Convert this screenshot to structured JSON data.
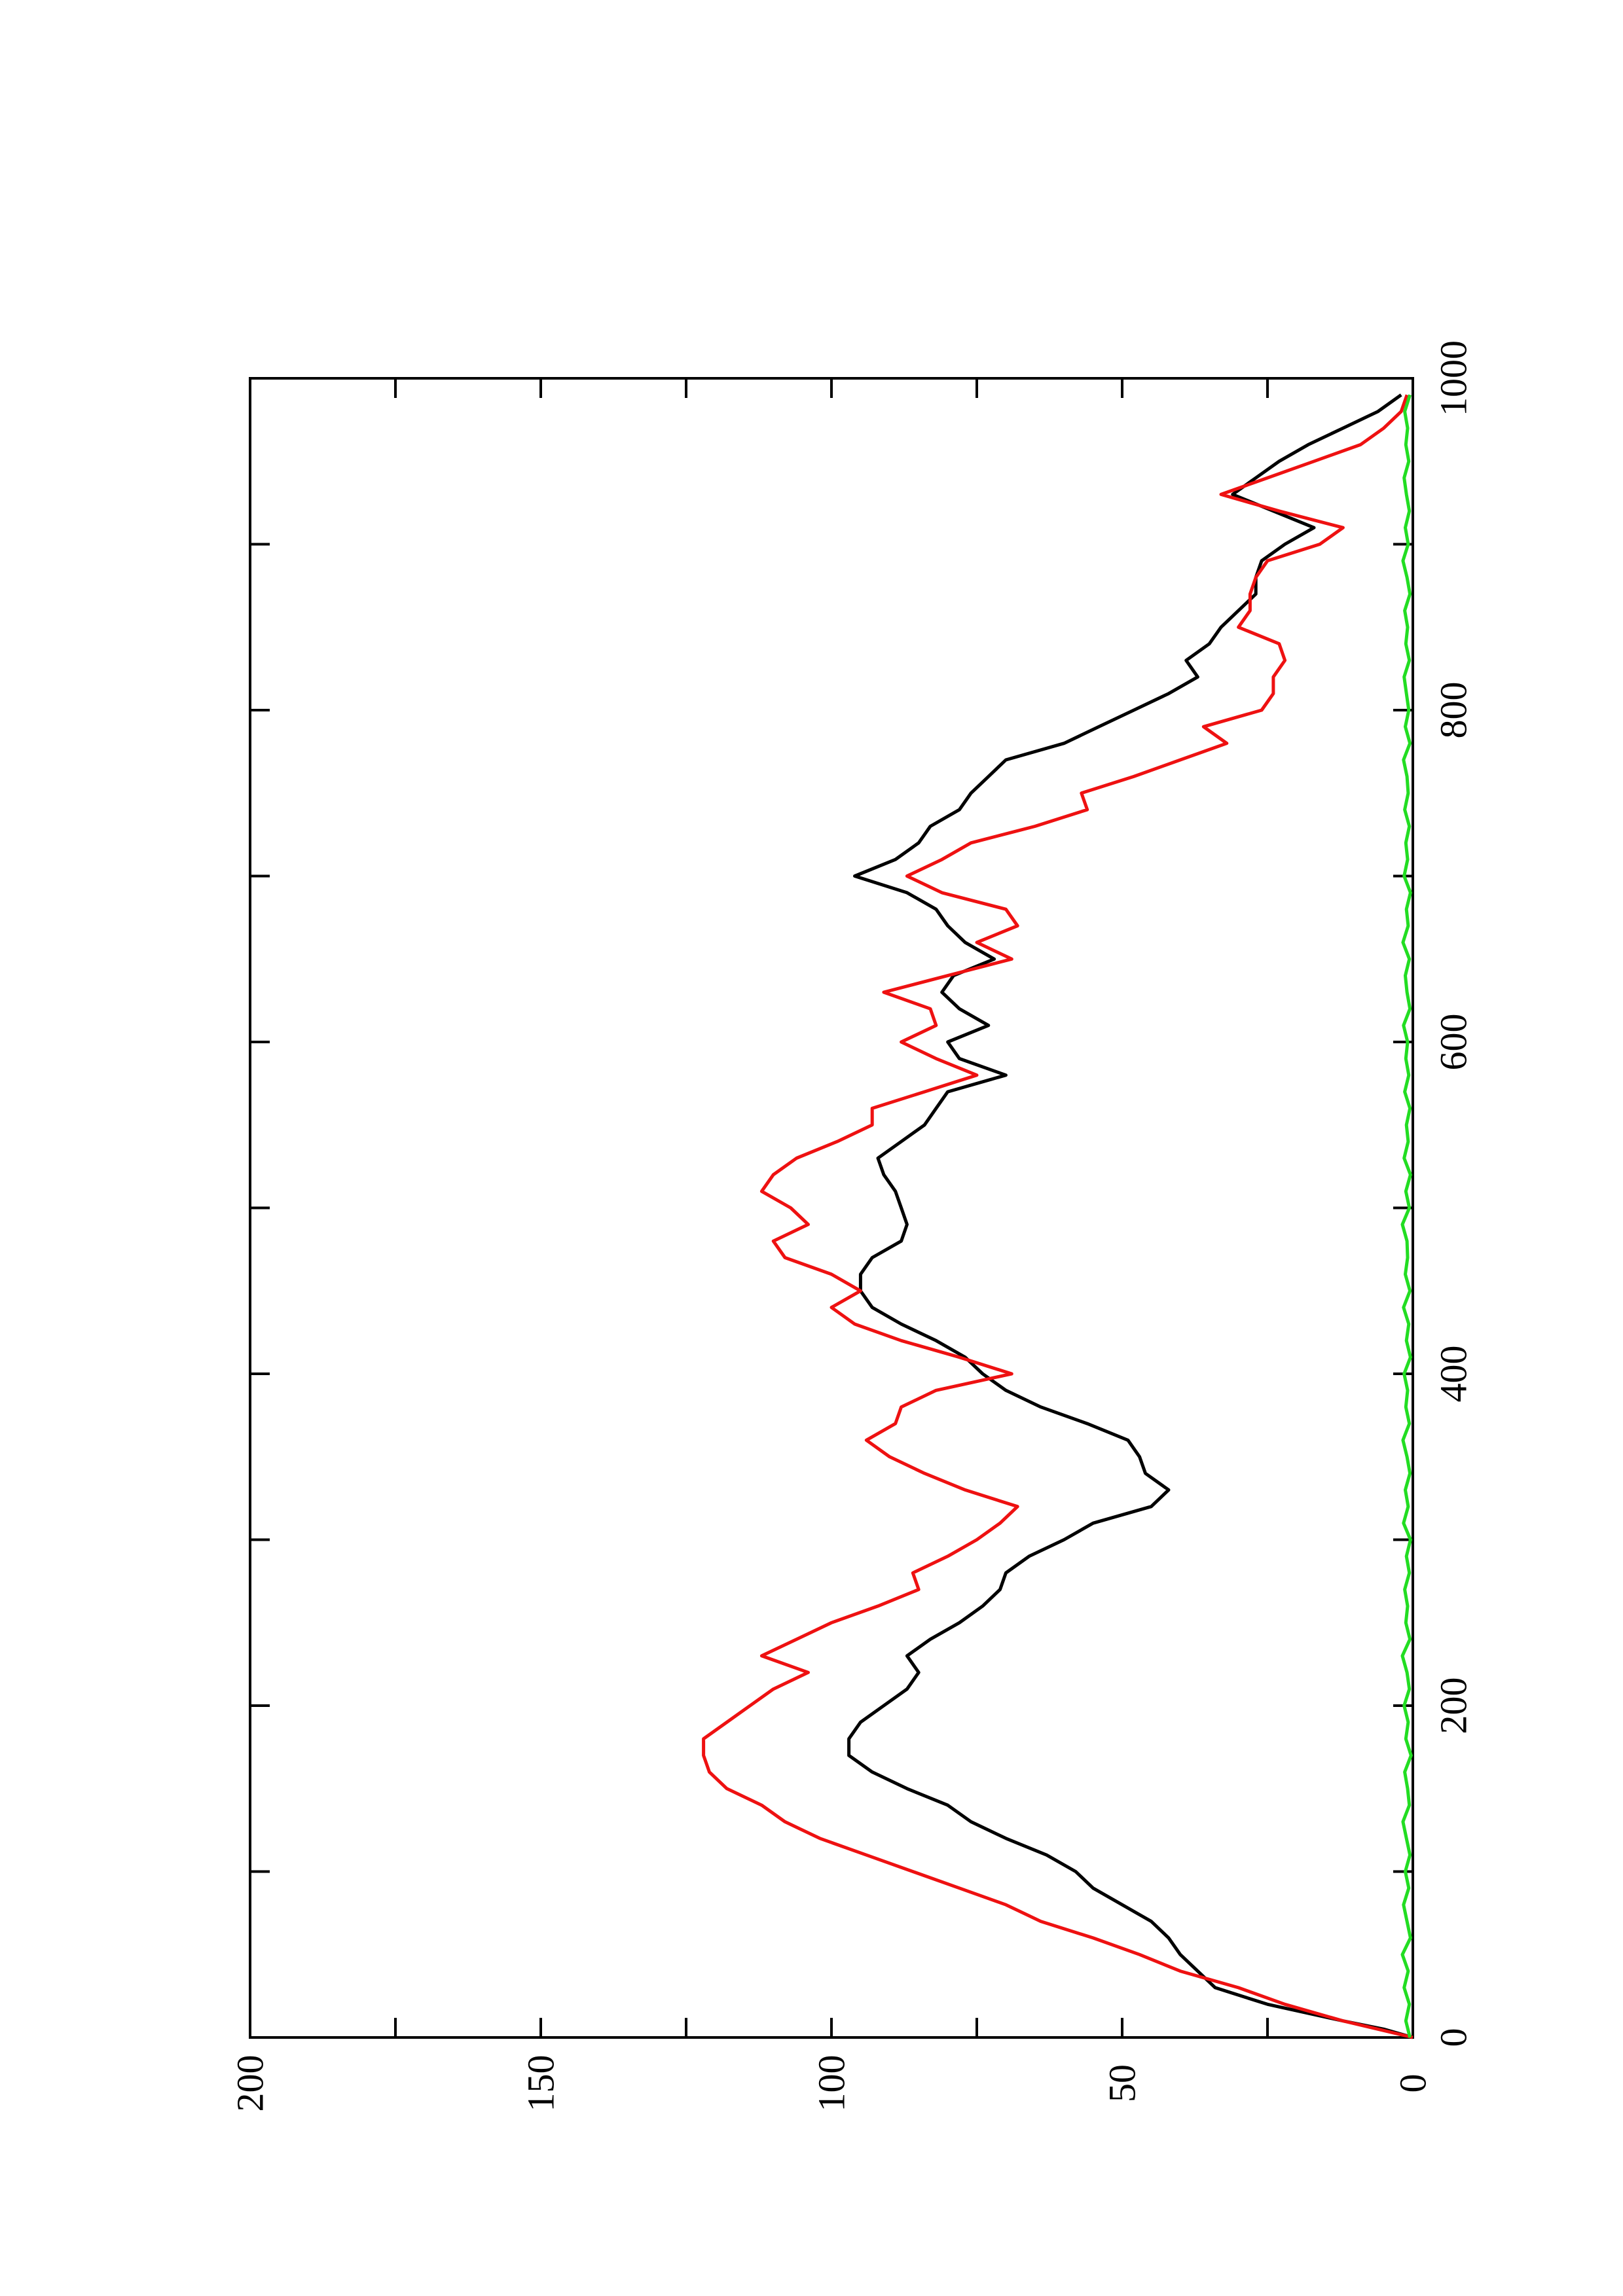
{
  "chart_data": {
    "type": "line",
    "title": "",
    "xlabel": "",
    "ylabel": "",
    "xlim": [
      0,
      1000
    ],
    "ylim": [
      0,
      200
    ],
    "x_ticks": [
      0,
      200,
      400,
      600,
      800,
      1000
    ],
    "x_tick_labels": [
      "0",
      "200",
      "400",
      "600",
      "800",
      "1000"
    ],
    "x_minor_ticks": [
      100,
      300,
      500,
      700,
      900
    ],
    "y_ticks": [
      0,
      50,
      100,
      150,
      200
    ],
    "y_tick_labels": [
      "0",
      "50",
      "100",
      "150",
      "200"
    ],
    "y_minor_ticks": [
      25,
      75,
      125,
      175
    ],
    "orientation": "rotated 90 degrees counter-clockwise",
    "grid": false,
    "legend": "none",
    "series": [
      {
        "color": "#000000",
        "x": [
          0,
          5,
          10,
          20,
          30,
          40,
          50,
          60,
          70,
          80,
          90,
          100,
          110,
          120,
          130,
          140,
          150,
          160,
          170,
          180,
          190,
          200,
          210,
          220,
          230,
          240,
          250,
          260,
          270,
          280,
          290,
          300,
          310,
          320,
          330,
          340,
          350,
          360,
          370,
          380,
          390,
          400,
          410,
          420,
          430,
          440,
          450,
          460,
          470,
          480,
          490,
          500,
          510,
          520,
          530,
          540,
          550,
          560,
          570,
          580,
          590,
          600,
          610,
          620,
          630,
          640,
          650,
          660,
          670,
          680,
          690,
          700,
          710,
          720,
          730,
          740,
          750,
          760,
          770,
          780,
          790,
          800,
          810,
          820,
          830,
          840,
          850,
          860,
          870,
          880,
          890,
          900,
          910,
          920,
          930,
          940,
          950,
          960,
          970,
          980,
          990
        ],
        "y": [
          0,
          5,
          12,
          25,
          34,
          37,
          40,
          42,
          45,
          50,
          55,
          58,
          63,
          70,
          76,
          80,
          87,
          93,
          97,
          97,
          95,
          91,
          87,
          85,
          87,
          83,
          78,
          74,
          71,
          70,
          66,
          60,
          55,
          45,
          42,
          46,
          47,
          49,
          56,
          64,
          70,
          74,
          77,
          82,
          88,
          93,
          95,
          95,
          93,
          88,
          87,
          88,
          89,
          91,
          92,
          88,
          84,
          82,
          80,
          70,
          78,
          80,
          73,
          78,
          81,
          79,
          72,
          77,
          80,
          82,
          87,
          96,
          89,
          85,
          83,
          78,
          76,
          73,
          70,
          60,
          54,
          48,
          42,
          37,
          39,
          35,
          33,
          30,
          27,
          27,
          26,
          22,
          17,
          24,
          31,
          27,
          23,
          18,
          12,
          6,
          2
        ]
      },
      {
        "color": "#ee1111",
        "x": [
          0,
          5,
          10,
          20,
          30,
          40,
          50,
          60,
          70,
          80,
          90,
          100,
          110,
          120,
          130,
          140,
          150,
          160,
          170,
          180,
          190,
          200,
          210,
          220,
          230,
          240,
          250,
          260,
          270,
          280,
          290,
          300,
          310,
          320,
          330,
          340,
          350,
          360,
          370,
          380,
          390,
          400,
          410,
          420,
          430,
          440,
          450,
          460,
          470,
          480,
          490,
          500,
          510,
          520,
          530,
          540,
          550,
          560,
          570,
          580,
          590,
          600,
          610,
          620,
          630,
          640,
          650,
          660,
          670,
          680,
          690,
          700,
          710,
          720,
          730,
          740,
          750,
          760,
          770,
          780,
          790,
          800,
          810,
          820,
          830,
          840,
          850,
          860,
          870,
          880,
          890,
          900,
          910,
          920,
          930,
          940,
          950,
          960,
          970,
          980,
          990
        ],
        "y": [
          0,
          6,
          12,
          22,
          30,
          40,
          47,
          55,
          64,
          70,
          78,
          86,
          94,
          102,
          108,
          112,
          118,
          121,
          122,
          122,
          118,
          114,
          110,
          104,
          112,
          106,
          100,
          92,
          85,
          86,
          80,
          75,
          71,
          68,
          77,
          84,
          90,
          94,
          89,
          88,
          82,
          69,
          78,
          88,
          96,
          100,
          95,
          100,
          108,
          110,
          104,
          107,
          112,
          110,
          106,
          99,
          93,
          93,
          84,
          75,
          82,
          88,
          82,
          83,
          91,
          80,
          69,
          75,
          68,
          70,
          81,
          87,
          81,
          76,
          65,
          56,
          57,
          48,
          40,
          32,
          36,
          26,
          24,
          24,
          22,
          23,
          30,
          28,
          28,
          27,
          25,
          16,
          12,
          23,
          33,
          25,
          17,
          9,
          5,
          2,
          1
        ]
      },
      {
        "color": "#22dd22",
        "x": [
          0,
          10,
          20,
          30,
          40,
          50,
          60,
          70,
          80,
          90,
          100,
          110,
          120,
          130,
          140,
          150,
          160,
          170,
          180,
          190,
          200,
          210,
          220,
          230,
          240,
          250,
          260,
          270,
          280,
          290,
          300,
          310,
          320,
          330,
          340,
          350,
          360,
          370,
          380,
          390,
          400,
          410,
          420,
          430,
          440,
          450,
          460,
          470,
          480,
          490,
          500,
          510,
          520,
          530,
          540,
          550,
          560,
          570,
          580,
          590,
          600,
          610,
          620,
          630,
          640,
          650,
          660,
          670,
          680,
          690,
          700,
          710,
          720,
          730,
          740,
          750,
          760,
          770,
          780,
          790,
          800,
          810,
          820,
          830,
          840,
          850,
          860,
          870,
          880,
          890,
          900,
          910,
          920,
          930,
          940,
          950,
          960,
          970,
          980,
          990
        ],
        "y": [
          0.5,
          1.2,
          0.6,
          1.5,
          0.8,
          1.8,
          0.4,
          1.0,
          1.6,
          0.7,
          1.3,
          0.5,
          1.1,
          1.7,
          0.6,
          0.9,
          1.4,
          0.3,
          1.2,
          0.8,
          1.5,
          0.6,
          1.0,
          1.8,
          0.5,
          1.2,
          0.9,
          1.4,
          0.6,
          1.1,
          0.4,
          1.6,
          0.8,
          1.3,
          0.5,
          1.0,
          1.7,
          0.6,
          1.2,
          0.9,
          1.5,
          0.4,
          1.1,
          0.7,
          1.6,
          0.5,
          1.3,
          0.9,
          1.0,
          1.8,
          0.6,
          1.2,
          0.4,
          1.5,
          0.8,
          1.1,
          0.5,
          1.4,
          0.7,
          1.2,
          0.9,
          1.6,
          0.5,
          1.0,
          1.3,
          0.6,
          1.7,
          0.8,
          1.1,
          0.4,
          1.5,
          0.9,
          1.2,
          0.6,
          1.4,
          0.8,
          1.0,
          1.6,
          0.5,
          1.3,
          0.7,
          1.1,
          1.5,
          0.6,
          1.2,
          0.9,
          1.4,
          0.5,
          1.0,
          1.7,
          0.8,
          1.3,
          0.6,
          1.1,
          1.5,
          0.7,
          1.2,
          0.9,
          1.4,
          0.5
        ]
      }
    ]
  }
}
